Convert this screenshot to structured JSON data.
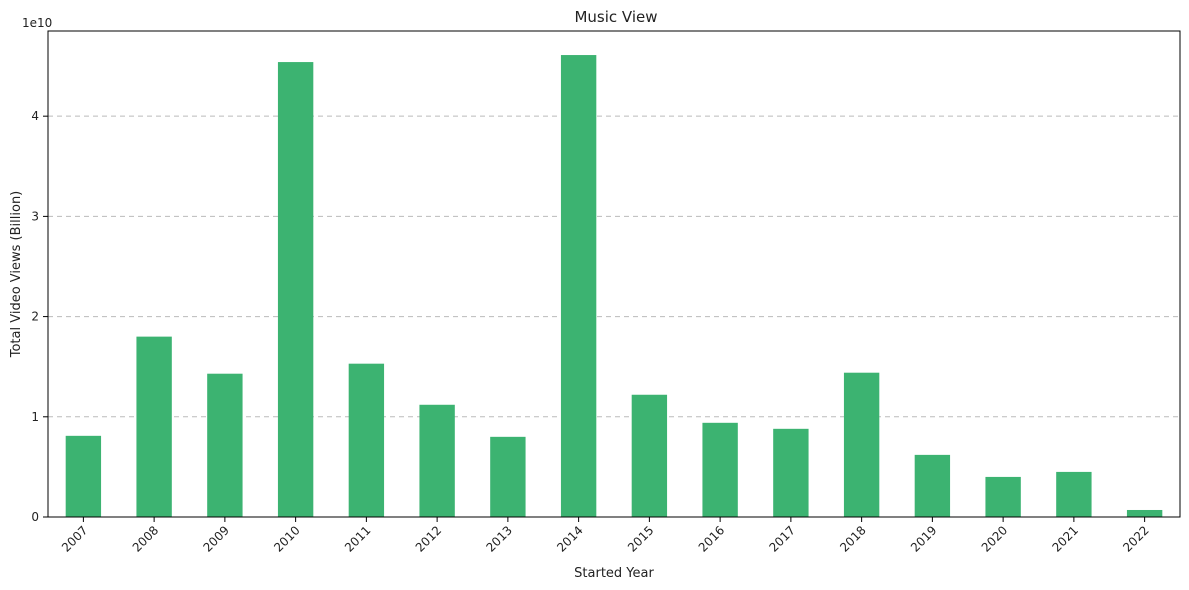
{
  "chart_data": {
    "type": "bar",
    "title": "Music View",
    "xlabel": "Started Year",
    "ylabel": "Total Video Views (Billion)",
    "offset_label": "1e10",
    "categories": [
      "2007",
      "2008",
      "2009",
      "2010",
      "2011",
      "2012",
      "2013",
      "2014",
      "2015",
      "2016",
      "2017",
      "2018",
      "2019",
      "2020",
      "2021",
      "2022"
    ],
    "values": [
      8.1,
      18.0,
      14.3,
      45.4,
      15.3,
      11.2,
      8.0,
      46.1,
      12.2,
      9.4,
      8.8,
      14.4,
      6.2,
      4.0,
      4.5,
      0.7
    ],
    "value_unit_note": "values in billions; axis ticks shown in units of 1e10",
    "yticks": [
      0,
      10,
      20,
      30,
      40
    ],
    "ytick_labels": [
      "0",
      "1",
      "2",
      "3",
      "4"
    ],
    "ylim": [
      0,
      48.5
    ],
    "grid": "y-dashed",
    "bar_color": "#3cb371"
  }
}
